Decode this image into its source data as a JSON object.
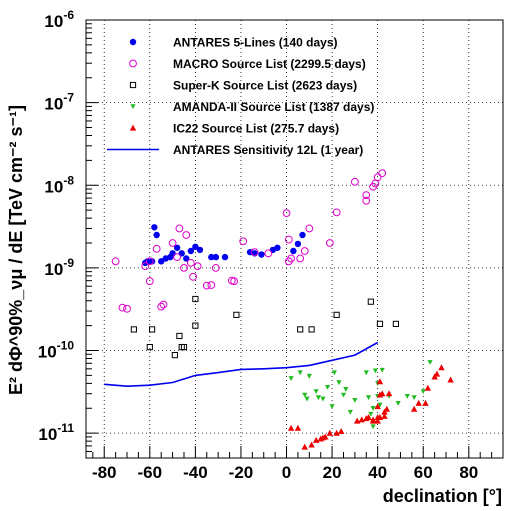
{
  "chart_data": {
    "type": "scatter",
    "xlabel": "declination [°]",
    "ylabel": "E² dΦ^90%_νμ / dE [TeV cm⁻² s⁻¹]",
    "xlim": [
      -88,
      95
    ],
    "ylim": [
      5e-12,
      1e-06
    ],
    "yscale": "log",
    "grid": true,
    "legend_position": "top-left",
    "x_ticks": [
      -80,
      -60,
      -40,
      -20,
      0,
      20,
      40,
      60,
      80
    ],
    "x_tick_labels": [
      "-80",
      "-60",
      "-40",
      "-20",
      "0",
      "20",
      "40",
      "60",
      "80"
    ],
    "y_ticks": [
      {
        "value": 1e-11,
        "base": "10",
        "exp": "-11"
      },
      {
        "value": 1e-10,
        "base": "10",
        "exp": "-10"
      },
      {
        "value": 1e-09,
        "base": "10",
        "exp": "-9"
      },
      {
        "value": 1e-08,
        "base": "10",
        "exp": "-8"
      },
      {
        "value": 1e-07,
        "base": "10",
        "exp": "-7"
      },
      {
        "value": 1e-06,
        "base": "10",
        "exp": "-6"
      }
    ],
    "series": [
      {
        "name": "ANTARES 5-Lines (140 days)",
        "marker": "filled-circle",
        "color": "#0000ee",
        "points": [
          [
            -62,
            1.15e-09
          ],
          [
            -61,
            1.2e-09
          ],
          [
            -59,
            1.2e-09
          ],
          [
            -58,
            3.1e-09
          ],
          [
            -57,
            2.5e-09
          ],
          [
            -55,
            1.2e-09
          ],
          [
            -53,
            1.3e-09
          ],
          [
            -51,
            1.35e-09
          ],
          [
            -50,
            1.5e-09
          ],
          [
            -48,
            1.75e-09
          ],
          [
            -46,
            1.5e-09
          ],
          [
            -44,
            1.3e-09
          ],
          [
            -42,
            1.6e-09
          ],
          [
            -40,
            1.8e-09
          ],
          [
            -38,
            1.65e-09
          ],
          [
            -33,
            1.35e-09
          ],
          [
            -31,
            1.35e-09
          ],
          [
            -27,
            1.35e-09
          ],
          [
            -16,
            1.55e-09
          ],
          [
            -14,
            1.5e-09
          ],
          [
            -11,
            1.45e-09
          ],
          [
            -6,
            1.65e-09
          ],
          [
            -4,
            1.75e-09
          ],
          [
            3,
            1.6e-09
          ],
          [
            5,
            1.95e-09
          ],
          [
            7,
            2.5e-09
          ]
        ]
      },
      {
        "name": "MACRO Source List (2299.5 days)",
        "marker": "open-circle",
        "color": "#dd00cc",
        "points": [
          [
            -75,
            1.2e-09
          ],
          [
            -72,
            3.3e-10
          ],
          [
            -70,
            3.2e-10
          ],
          [
            -62,
            1.05e-09
          ],
          [
            -60,
            6.9e-10
          ],
          [
            -60,
            1.2e-09
          ],
          [
            -57,
            1.7e-09
          ],
          [
            -55,
            3.4e-10
          ],
          [
            -54,
            3.6e-10
          ],
          [
            -50,
            2e-09
          ],
          [
            -48,
            1.35e-09
          ],
          [
            -47,
            3e-09
          ],
          [
            -44,
            2.5e-09
          ],
          [
            -45,
            1e-09
          ],
          [
            -42,
            1.15e-09
          ],
          [
            -41,
            7.8e-10
          ],
          [
            -39,
            1.05e-09
          ],
          [
            -35,
            6.1e-10
          ],
          [
            -33,
            6.2e-10
          ],
          [
            -31,
            1e-09
          ],
          [
            -24,
            7e-10
          ],
          [
            -23,
            6.9e-10
          ],
          [
            -19,
            2.1e-09
          ],
          [
            -14,
            1.55e-09
          ],
          [
            -8,
            1.5e-09
          ],
          [
            0,
            4.6e-09
          ],
          [
            1,
            2.2e-09
          ],
          [
            1,
            1.2e-09
          ],
          [
            2,
            1.3e-09
          ],
          [
            6,
            1.3e-09
          ],
          [
            8,
            1.6e-09
          ],
          [
            10,
            3e-09
          ],
          [
            19,
            2e-09
          ],
          [
            22,
            4.7e-09
          ],
          [
            30,
            1.1e-08
          ],
          [
            35,
            6.5e-09
          ],
          [
            35,
            7.6e-09
          ],
          [
            38,
            9.6e-09
          ],
          [
            39,
            1.05e-08
          ],
          [
            40,
            1.25e-08
          ],
          [
            42,
            1.4e-08
          ]
        ]
      },
      {
        "name": "Super-K Source List (2623 days)",
        "marker": "open-square",
        "color": "#000000",
        "points": [
          [
            -67,
            1.8e-10
          ],
          [
            -60,
            1.1e-10
          ],
          [
            -59,
            1.8e-10
          ],
          [
            -49,
            8.8e-11
          ],
          [
            -47,
            1.5e-10
          ],
          [
            -46,
            1.1e-10
          ],
          [
            -45,
            1.1e-10
          ],
          [
            -40,
            2e-10
          ],
          [
            -40,
            4.2e-10
          ],
          [
            -22,
            2.7e-10
          ],
          [
            6,
            1.8e-10
          ],
          [
            11,
            1.8e-10
          ],
          [
            22,
            2.7e-10
          ],
          [
            37,
            3.9e-10
          ],
          [
            41,
            2.1e-10
          ],
          [
            48,
            2.1e-10
          ]
        ]
      },
      {
        "name": "AMANDA-II Source List (1387 days)",
        "marker": "filled-triangle-down",
        "color": "#22bb22",
        "points": [
          [
            2,
            4.6e-11
          ],
          [
            6,
            5.4e-11
          ],
          [
            8,
            2.9e-11
          ],
          [
            9,
            2.6e-11
          ],
          [
            10,
            4.9e-11
          ],
          [
            13,
            3.2e-11
          ],
          [
            14,
            2.7e-11
          ],
          [
            16,
            2.6e-11
          ],
          [
            18,
            3.6e-11
          ],
          [
            20,
            2.1e-11
          ],
          [
            21,
            5.4e-11
          ],
          [
            23,
            4.1e-11
          ],
          [
            25,
            2.9e-11
          ],
          [
            26,
            3.4e-11
          ],
          [
            28,
            1.8e-11
          ],
          [
            30,
            2.5e-11
          ],
          [
            35,
            5.4e-11
          ],
          [
            36,
            2.7e-11
          ],
          [
            37,
            1.7e-11
          ],
          [
            38,
            2e-11
          ],
          [
            38,
            1.2e-11
          ],
          [
            39,
            5.7e-11
          ],
          [
            40,
            4e-11
          ],
          [
            40,
            2.8e-11
          ],
          [
            41,
            2.2e-11
          ],
          [
            42,
            5.8e-11
          ],
          [
            45,
            2.8e-11
          ],
          [
            49,
            2.3e-11
          ],
          [
            53,
            2.8e-11
          ],
          [
            56,
            2.7e-11
          ],
          [
            60,
            3.2e-11
          ],
          [
            63,
            7.2e-11
          ]
        ]
      },
      {
        "name": "IC22 Source List (275.7 days)",
        "marker": "filled-triangle-up",
        "color": "#ee0000",
        "points": [
          [
            2,
            1.15e-11
          ],
          [
            5,
            1.15e-11
          ],
          [
            8,
            6.8e-12
          ],
          [
            11,
            7.2e-12
          ],
          [
            13,
            8.2e-12
          ],
          [
            15,
            8.5e-12
          ],
          [
            16,
            8.8e-12
          ],
          [
            17,
            9e-12
          ],
          [
            19,
            1e-11
          ],
          [
            22,
            1e-11
          ],
          [
            24,
            1.05e-11
          ],
          [
            31,
            1.4e-11
          ],
          [
            33,
            1.45e-11
          ],
          [
            35,
            1.5e-11
          ],
          [
            36,
            1.55e-11
          ],
          [
            38,
            1.4e-11
          ],
          [
            38,
            1.45e-11
          ],
          [
            40,
            1.4e-11
          ],
          [
            40,
            1.55e-11
          ],
          [
            40,
            2.1e-11
          ],
          [
            41,
            1.55e-11
          ],
          [
            41,
            2.9e-11
          ],
          [
            41,
            4.2e-11
          ],
          [
            42,
            3e-11
          ],
          [
            43,
            1.6e-11
          ],
          [
            43,
            1.8e-11
          ],
          [
            44,
            1.95e-11
          ],
          [
            45,
            3e-11
          ],
          [
            56,
            1.95e-11
          ],
          [
            58,
            2.3e-11
          ],
          [
            61,
            2.3e-11
          ],
          [
            62,
            3.5e-11
          ],
          [
            65,
            4.8e-11
          ],
          [
            66,
            5.2e-11
          ],
          [
            68,
            6.2e-11
          ],
          [
            72,
            4.4e-11
          ]
        ]
      },
      {
        "name": "ANTARES Sensitivity 12L (1 year)",
        "marker": "line",
        "color": "#0000ee",
        "points": [
          [
            -80,
            3.9e-11
          ],
          [
            -70,
            3.7e-11
          ],
          [
            -60,
            3.8e-11
          ],
          [
            -50,
            4.1e-11
          ],
          [
            -40,
            5e-11
          ],
          [
            -30,
            5.4e-11
          ],
          [
            -20,
            5.9e-11
          ],
          [
            -10,
            6e-11
          ],
          [
            0,
            6.2e-11
          ],
          [
            10,
            6.6e-11
          ],
          [
            20,
            7.6e-11
          ],
          [
            30,
            8.8e-11
          ],
          [
            40,
            1.25e-10
          ]
        ]
      }
    ]
  }
}
